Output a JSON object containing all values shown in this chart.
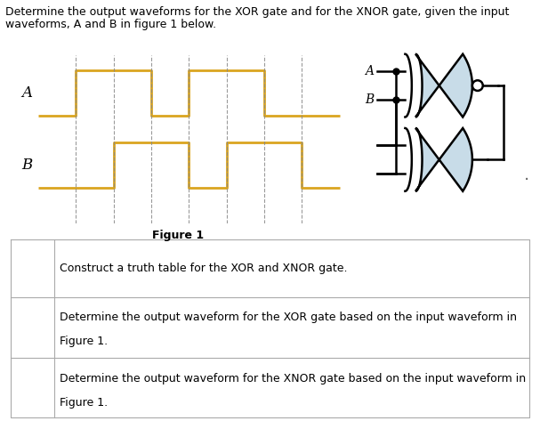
{
  "title_line1": "Determine the output waveforms for the XOR gate and for the XNOR gate, given the input",
  "title_line2": "waveforms, A and B in figure 1 below.",
  "figure_label": "Figure 1",
  "waveform_color": "#DAA520",
  "dashed_color": "#888888",
  "bg_color": "#ffffff",
  "A_label": "A",
  "B_label": "B",
  "row1_text": "Construct a truth table for the XOR and XNOR gate.",
  "row2_line1": "Determine the output waveform for the XOR gate based on the input waveform in",
  "row2_line2": "Figure 1.",
  "row3_line1": "Determine the output waveform for the XNOR gate based on the input waveform in",
  "row3_line2": "Figure 1.",
  "gate_color": "#c8dce8",
  "gate_line_color": "#000000",
  "table_border_color": "#aaaaaa",
  "text_fontsize": 9.0,
  "title_fontsize": 9.0
}
